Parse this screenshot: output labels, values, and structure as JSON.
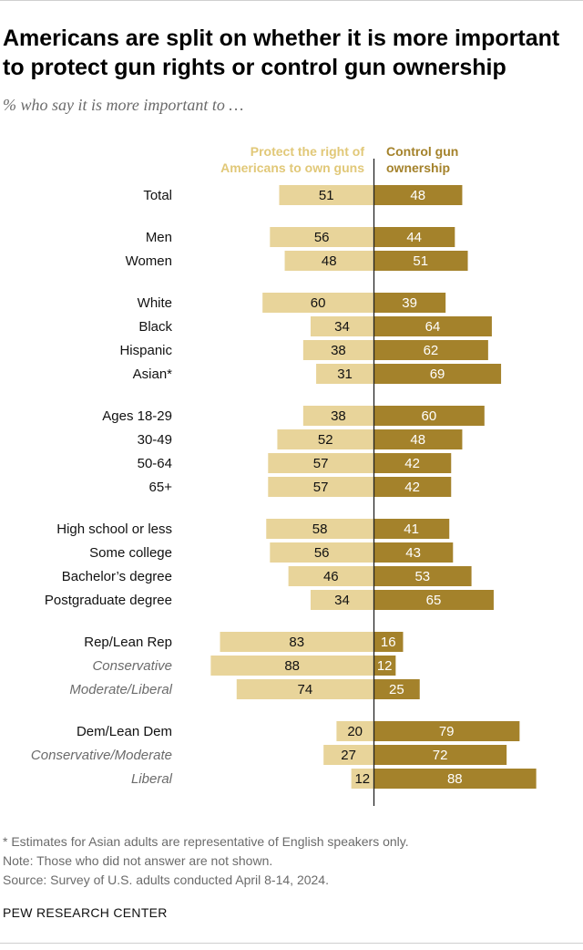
{
  "title": "Americans are split on whether it is more important to protect gun rights or control gun ownership",
  "subtitle": "% who say it is more important to …",
  "colors": {
    "left": "#e8d49a",
    "right": "#a4822b",
    "left_text": "#e1c878",
    "divider": "#222222"
  },
  "chart_data": {
    "type": "bar",
    "orientation": "diverging-horizontal",
    "series": [
      {
        "name": "Protect the right of Americans to own guns",
        "legend_lines": [
          "Protect the right of",
          "Americans to own guns"
        ],
        "values": [
          51,
          56,
          48,
          60,
          34,
          38,
          31,
          38,
          52,
          57,
          57,
          58,
          56,
          46,
          34,
          83,
          88,
          74,
          20,
          27,
          12
        ]
      },
      {
        "name": "Control gun ownership",
        "legend_lines": [
          "Control gun",
          "ownership"
        ],
        "values": [
          48,
          44,
          51,
          39,
          64,
          62,
          69,
          60,
          48,
          42,
          42,
          41,
          43,
          53,
          65,
          16,
          12,
          25,
          79,
          72,
          88
        ]
      }
    ],
    "categories": [
      {
        "label": "Total",
        "italic": false
      },
      {
        "label": "Men",
        "italic": false
      },
      {
        "label": "Women",
        "italic": false
      },
      {
        "label": "White",
        "italic": false
      },
      {
        "label": "Black",
        "italic": false
      },
      {
        "label": "Hispanic",
        "italic": false
      },
      {
        "label": "Asian*",
        "italic": false
      },
      {
        "label": "Ages 18-29",
        "italic": false
      },
      {
        "label": "30-49",
        "italic": false
      },
      {
        "label": "50-64",
        "italic": false
      },
      {
        "label": "65+",
        "italic": false
      },
      {
        "label": "High school or less",
        "italic": false
      },
      {
        "label": "Some college",
        "italic": false
      },
      {
        "label": "Bachelor’s degree",
        "italic": false
      },
      {
        "label": "Postgraduate degree",
        "italic": false
      },
      {
        "label": "Rep/Lean Rep",
        "italic": false
      },
      {
        "label": "Conservative",
        "italic": true
      },
      {
        "label": "Moderate/Liberal",
        "italic": true
      },
      {
        "label": "Dem/Lean Dem",
        "italic": false
      },
      {
        "label": "Conservative/Moderate",
        "italic": true
      },
      {
        "label": "Liberal",
        "italic": true
      }
    ],
    "groups": [
      [
        0
      ],
      [
        1,
        2
      ],
      [
        3,
        4,
        5,
        6
      ],
      [
        7,
        8,
        9,
        10
      ],
      [
        11,
        12,
        13,
        14
      ],
      [
        15,
        16,
        17
      ],
      [
        18,
        19,
        20
      ]
    ]
  },
  "footer": {
    "note1": "* Estimates for Asian adults are representative of English speakers only.",
    "note2": "Note: Those who did not answer are not shown.",
    "source": "Source: Survey of U.S. adults conducted April 8-14, 2024."
  },
  "brand": "PEW RESEARCH CENTER"
}
